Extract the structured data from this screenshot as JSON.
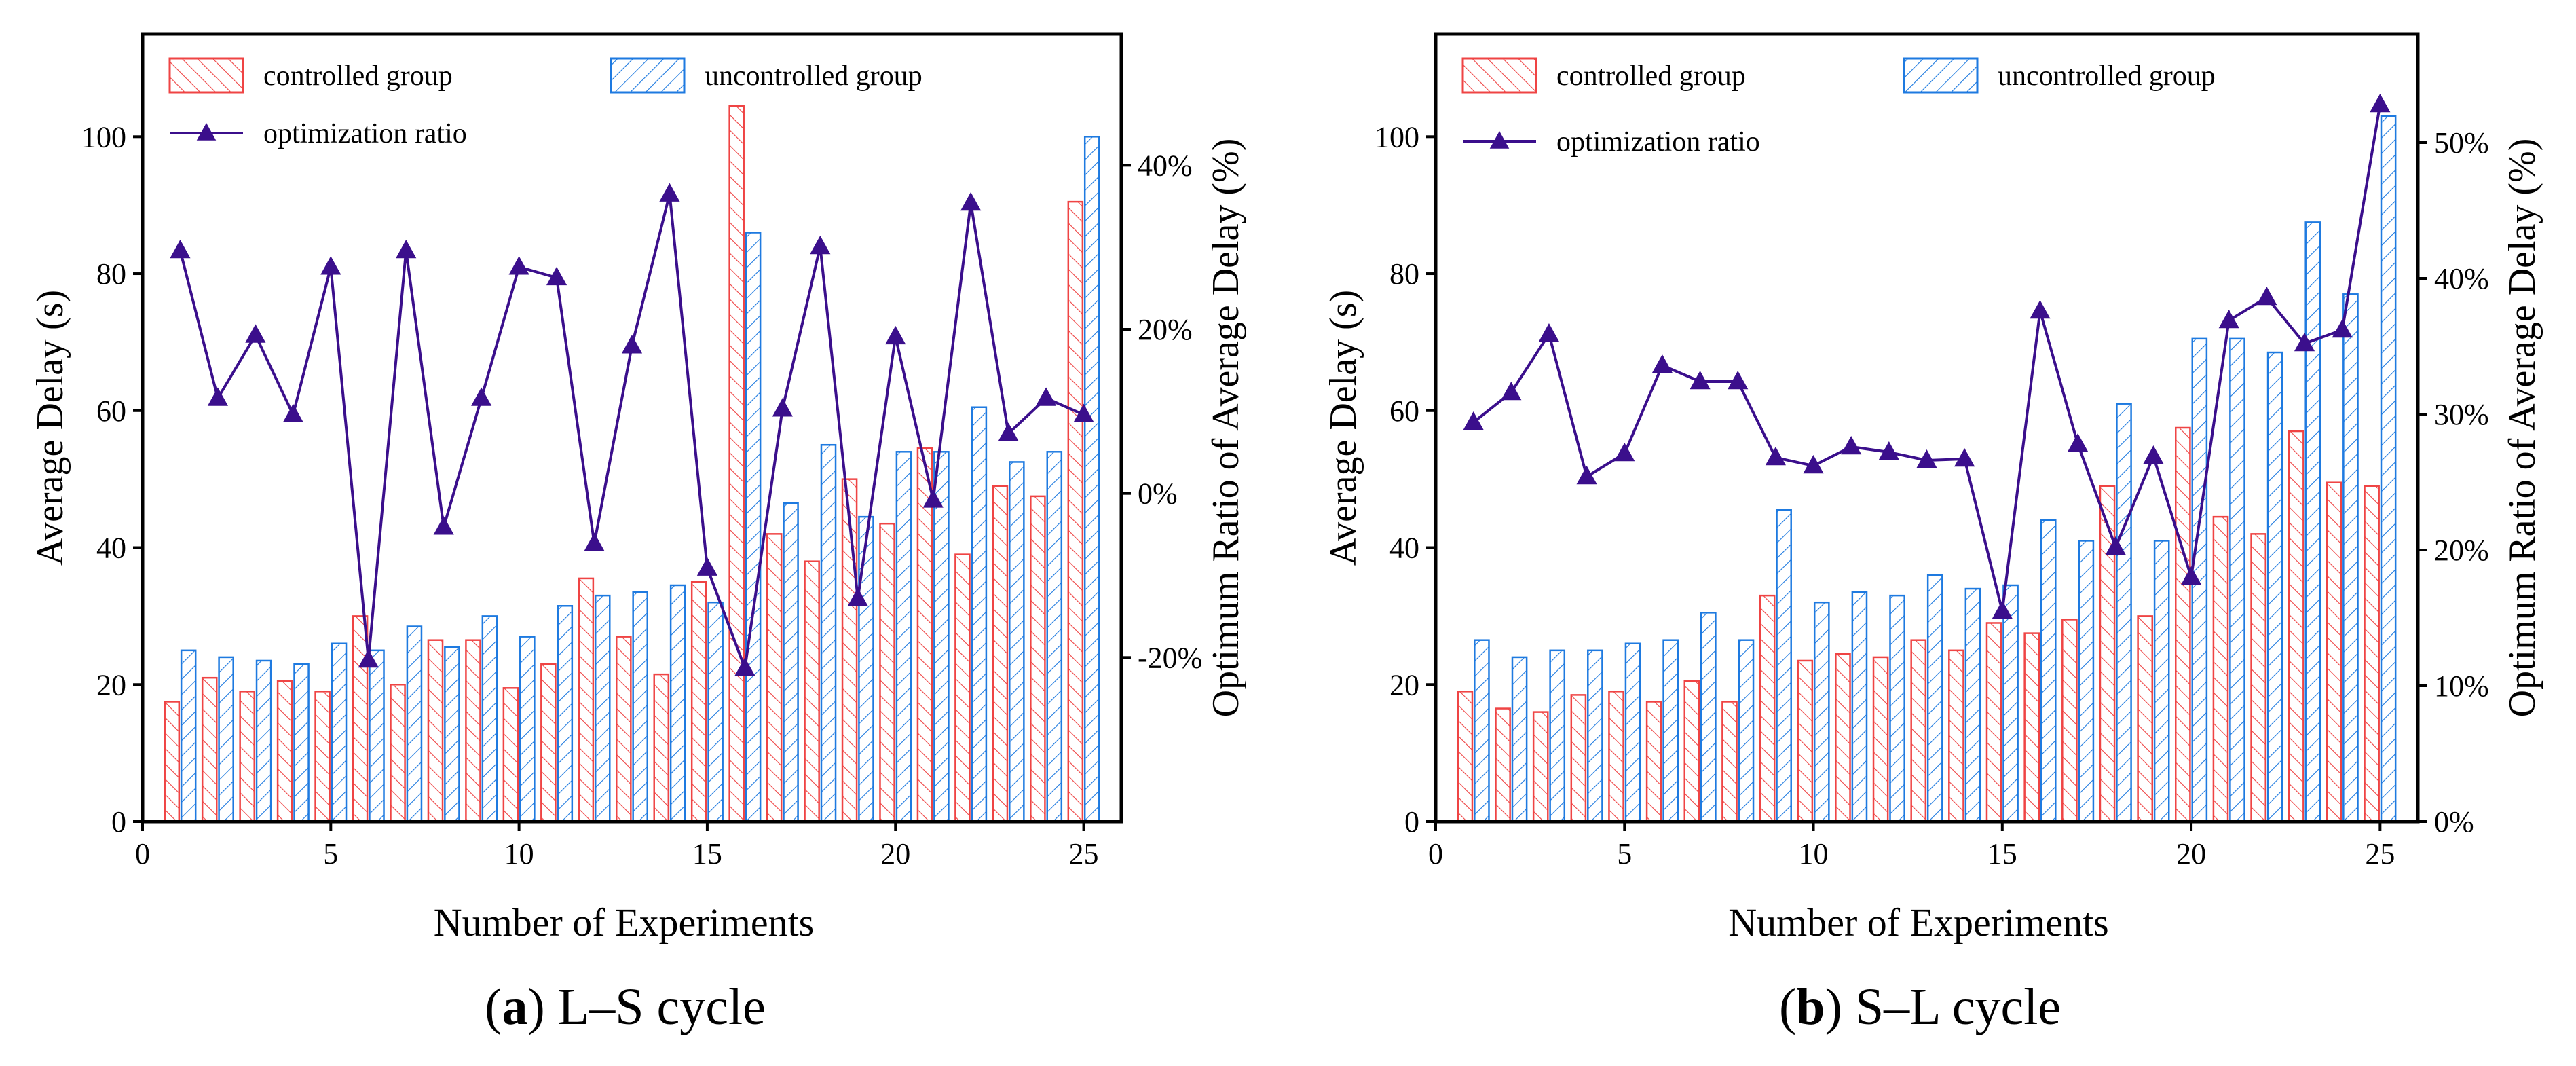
{
  "figure": {
    "colors": {
      "controlled": "#ef4444",
      "uncontrolled": "#1e7ae0",
      "ratio_line": "#3b0f8c"
    }
  },
  "chart_data": [
    {
      "type": "bar",
      "caption_letter": "a",
      "caption_text": "L–S cycle",
      "xlabel": "Number of Experiments",
      "ylabel": "Average Delay (s)",
      "ylabel_right": "Optimum Ratio of Average Delay (%)",
      "xlim": [
        0,
        26
      ],
      "ylim": [
        0,
        115
      ],
      "y2lim": [
        -40,
        56
      ],
      "xticks": [
        0,
        5,
        10,
        15,
        20,
        25
      ],
      "xtick_labels": [
        "0",
        "5",
        "10",
        "15",
        "20",
        "25"
      ],
      "yticks": [
        0,
        20,
        40,
        60,
        80,
        100
      ],
      "ytick_labels": [
        "0",
        "20",
        "40",
        "60",
        "80",
        "100"
      ],
      "y2ticks": [
        -20,
        0,
        20,
        40
      ],
      "y2tick_labels": [
        "-20%",
        "0%",
        "20%",
        "40%"
      ],
      "x": [
        1,
        2,
        3,
        4,
        5,
        6,
        7,
        8,
        9,
        10,
        11,
        12,
        13,
        14,
        15,
        16,
        17,
        18,
        19,
        20,
        21,
        22,
        23,
        24,
        25
      ],
      "legend": {
        "controlled": "controlled group",
        "uncontrolled": "uncontrolled group",
        "ratio": "optimization ratio"
      },
      "series": [
        {
          "name": "controlled group",
          "axis": "left",
          "values": [
            17.5,
            21,
            19,
            20.5,
            19,
            30,
            20,
            26.5,
            26.5,
            19.5,
            23,
            35.5,
            27,
            21.5,
            35,
            104.5,
            42,
            38,
            50,
            43.5,
            54.5,
            39,
            49,
            47.5,
            90.5
          ]
        },
        {
          "name": "uncontrolled group",
          "axis": "left",
          "values": [
            25,
            24,
            23.5,
            23,
            26,
            25,
            28.5,
            25.5,
            30,
            27,
            31.5,
            33,
            33.5,
            34.5,
            32,
            86,
            46.5,
            55,
            44.5,
            54,
            54,
            60.5,
            52.5,
            54,
            100
          ]
        },
        {
          "name": "optimization ratio",
          "axis": "right",
          "unit": "%",
          "values": [
            29.6,
            11.6,
            19.3,
            9.6,
            27.6,
            -20.3,
            29.6,
            -4.1,
            11.6,
            27.6,
            26.3,
            -6.1,
            18,
            36.5,
            -9.1,
            -21.3,
            10.3,
            30.1,
            -12.8,
            19.1,
            -0.8,
            35.4,
            7.3,
            11.6,
            9.6
          ]
        }
      ]
    },
    {
      "type": "bar",
      "caption_letter": "b",
      "caption_text": "S–L cycle",
      "xlabel": "Number of Experiments",
      "ylabel": "Average Delay (s)",
      "ylabel_right": "Optimum Ratio of Average Delay (%)",
      "xlim": [
        0,
        26
      ],
      "ylim": [
        0,
        115
      ],
      "y2lim": [
        0,
        58
      ],
      "xticks": [
        0,
        5,
        10,
        15,
        20,
        25
      ],
      "xtick_labels": [
        "0",
        "5",
        "10",
        "15",
        "20",
        "25"
      ],
      "yticks": [
        0,
        20,
        40,
        60,
        80,
        100
      ],
      "ytick_labels": [
        "0",
        "20",
        "40",
        "60",
        "80",
        "100"
      ],
      "y2ticks": [
        0,
        10,
        20,
        30,
        40,
        50
      ],
      "y2tick_labels": [
        "0%",
        "10%",
        "20%",
        "30%",
        "40%",
        "50%"
      ],
      "x": [
        1,
        2,
        3,
        4,
        5,
        6,
        7,
        8,
        9,
        10,
        11,
        12,
        13,
        14,
        15,
        16,
        17,
        18,
        19,
        20,
        21,
        22,
        23,
        24,
        25
      ],
      "legend": {
        "controlled": "controlled group",
        "uncontrolled": "uncontrolled group",
        "ratio": "optimization ratio"
      },
      "series": [
        {
          "name": "controlled group",
          "axis": "left",
          "values": [
            19,
            16.5,
            16,
            18.5,
            19,
            17.5,
            20.5,
            17.5,
            33,
            23.5,
            24.5,
            24,
            26.5,
            25,
            29,
            27.5,
            29.5,
            49,
            30,
            57.5,
            44.5,
            42,
            57,
            49.5,
            49
          ]
        },
        {
          "name": "uncontrolled group",
          "axis": "left",
          "values": [
            26.5,
            24,
            25,
            25,
            26,
            26.5,
            30.5,
            26.5,
            45.5,
            32,
            33.5,
            33,
            36,
            34,
            34.5,
            44,
            41,
            61,
            41,
            70.5,
            70.5,
            68.5,
            87.5,
            77,
            103
          ]
        },
        {
          "name": "optimization ratio",
          "axis": "right",
          "unit": "%",
          "values": [
            29.4,
            31.6,
            35.9,
            25.4,
            27.1,
            33.6,
            32.4,
            32.4,
            26.8,
            26.2,
            27.6,
            27.2,
            26.6,
            26.7,
            15.5,
            37.6,
            27.8,
            20.2,
            26.9,
            18,
            36.9,
            38.6,
            35.2,
            36.2,
            52.8
          ]
        }
      ]
    }
  ]
}
